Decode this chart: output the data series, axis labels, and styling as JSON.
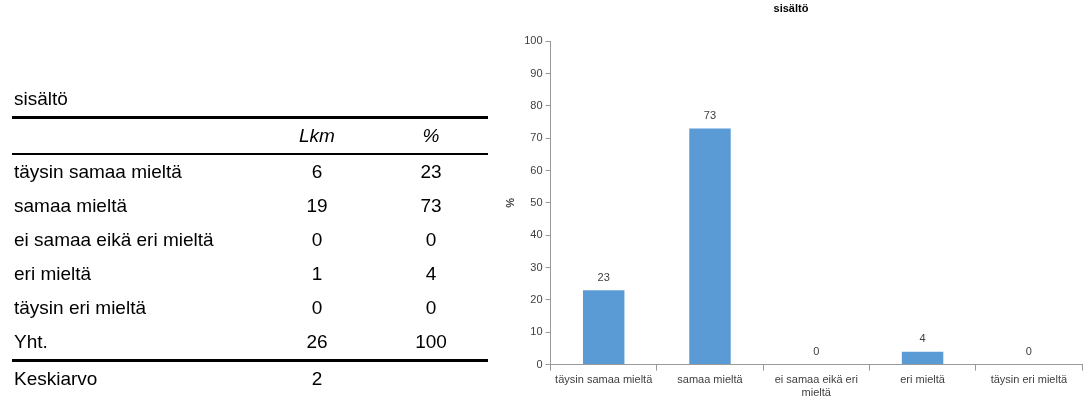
{
  "chart_data": [
    {
      "type": "other",
      "title": "sisältö",
      "categories": [
        "täysin samaa mieltä",
        "samaa mieltä",
        "ei samaa eikä eri mieltä",
        "eri mieltä",
        "täysin eri mieltä",
        "Yht.",
        "Keskiarvo"
      ],
      "series": [
        {
          "name": "Lkm",
          "values": [
            6,
            19,
            0,
            1,
            0,
            26,
            2
          ]
        },
        {
          "name": "%",
          "values": [
            23,
            73,
            0,
            4,
            0,
            100,
            null
          ]
        }
      ],
      "data_labels": true
    },
    {
      "type": "bar",
      "title": "sisältö",
      "ylabel": "%",
      "categories": [
        "täysin samaa mieltä",
        "samaa mieltä",
        "ei samaa eikä eri mieltä",
        "eri mieltä",
        "täysin eri mieltä"
      ],
      "values": [
        23,
        73,
        0,
        4,
        0
      ],
      "color": "#5b9bd5",
      "ylim": [
        0,
        100
      ],
      "yticks": [
        0,
        10,
        20,
        30,
        40,
        50,
        60,
        70,
        80,
        90,
        100
      ],
      "grid": false,
      "legend": false,
      "data_labels": true
    }
  ]
}
